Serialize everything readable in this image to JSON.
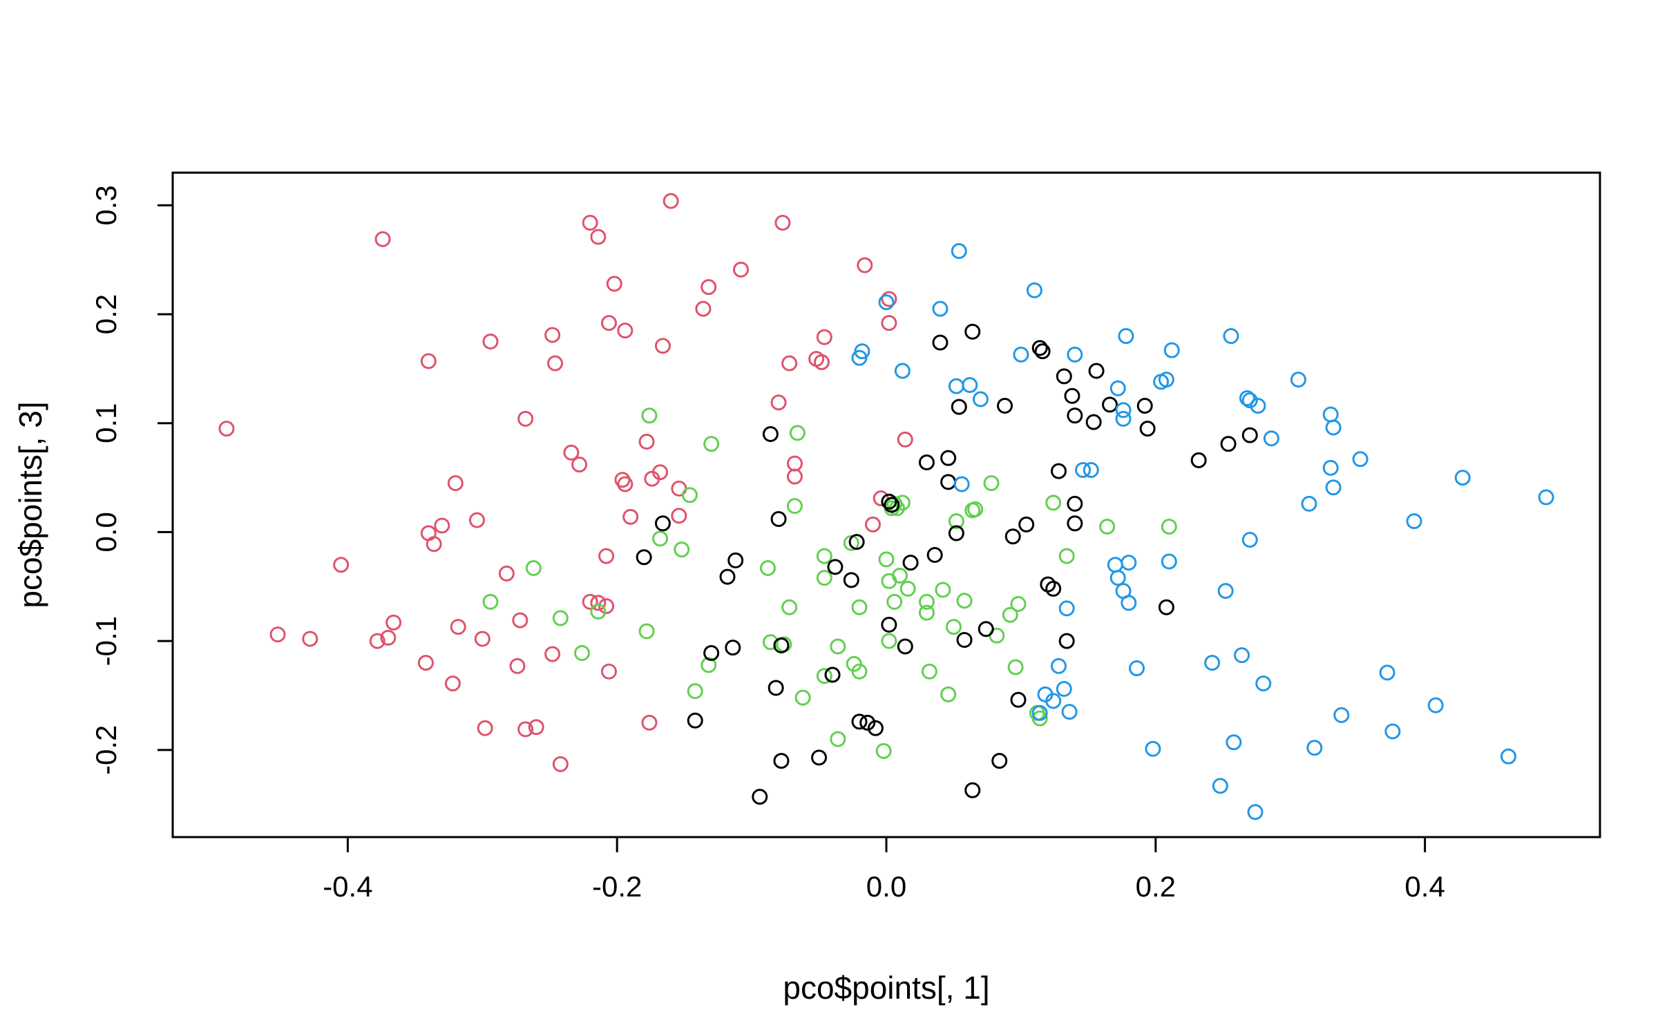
{
  "chart_data": {
    "type": "scatter",
    "title": "",
    "xlabel": "pco$points[, 1]",
    "ylabel": "pco$points[, 3]",
    "xlim": [
      -0.53,
      0.53
    ],
    "ylim": [
      -0.28,
      0.33
    ],
    "x_ticks": [
      -0.4,
      -0.2,
      0.0,
      0.2,
      0.4
    ],
    "x_tick_labels": [
      "-0.4",
      "-0.2",
      "0.0",
      "0.2",
      "0.4"
    ],
    "y_ticks": [
      -0.2,
      -0.1,
      0.0,
      0.1,
      0.2,
      0.3
    ],
    "y_tick_labels": [
      "-0.2",
      "-0.1",
      "0.0",
      "0.1",
      "0.2",
      "0.3"
    ],
    "grid": false,
    "marker": "open-circle",
    "series": [
      {
        "color": "#df536b",
        "points": [
          [
            -0.49,
            0.095
          ],
          [
            -0.452,
            -0.094
          ],
          [
            -0.428,
            -0.098
          ],
          [
            -0.405,
            -0.03
          ],
          [
            -0.378,
            -0.1
          ],
          [
            -0.374,
            0.269
          ],
          [
            -0.37,
            -0.097
          ],
          [
            -0.366,
            -0.083
          ],
          [
            -0.342,
            -0.12
          ],
          [
            -0.34,
            0.157
          ],
          [
            -0.34,
            -0.001
          ],
          [
            -0.336,
            -0.011
          ],
          [
            -0.33,
            0.006
          ],
          [
            -0.322,
            -0.139
          ],
          [
            -0.32,
            0.045
          ],
          [
            -0.318,
            -0.087
          ],
          [
            -0.304,
            0.011
          ],
          [
            -0.3,
            -0.098
          ],
          [
            -0.298,
            -0.18
          ],
          [
            -0.294,
            0.175
          ],
          [
            -0.282,
            -0.038
          ],
          [
            -0.274,
            -0.123
          ],
          [
            -0.272,
            -0.081
          ],
          [
            -0.268,
            0.104
          ],
          [
            -0.268,
            -0.181
          ],
          [
            -0.26,
            -0.179
          ],
          [
            -0.248,
            0.181
          ],
          [
            -0.248,
            -0.112
          ],
          [
            -0.246,
            0.155
          ],
          [
            -0.242,
            -0.213
          ],
          [
            -0.234,
            0.073
          ],
          [
            -0.228,
            0.062
          ],
          [
            -0.22,
            -0.064
          ],
          [
            -0.22,
            0.284
          ],
          [
            -0.214,
            0.271
          ],
          [
            -0.214,
            -0.065
          ],
          [
            -0.208,
            -0.068
          ],
          [
            -0.208,
            -0.022
          ],
          [
            -0.206,
            0.192
          ],
          [
            -0.206,
            -0.128
          ],
          [
            -0.202,
            0.228
          ],
          [
            -0.196,
            0.048
          ],
          [
            -0.194,
            0.044
          ],
          [
            -0.194,
            0.185
          ],
          [
            -0.19,
            0.014
          ],
          [
            -0.178,
            0.083
          ],
          [
            -0.176,
            -0.175
          ],
          [
            -0.174,
            0.049
          ],
          [
            -0.168,
            0.055
          ],
          [
            -0.166,
            0.171
          ],
          [
            -0.16,
            0.304
          ],
          [
            -0.154,
            0.015
          ],
          [
            -0.154,
            0.04
          ],
          [
            -0.136,
            0.205
          ],
          [
            -0.132,
            0.225
          ],
          [
            -0.108,
            0.241
          ],
          [
            -0.077,
            0.284
          ],
          [
            -0.08,
            0.119
          ],
          [
            -0.072,
            0.155
          ],
          [
            -0.068,
            0.051
          ],
          [
            -0.068,
            0.063
          ],
          [
            -0.052,
            0.159
          ],
          [
            -0.048,
            0.156
          ],
          [
            -0.046,
            0.179
          ],
          [
            -0.016,
            0.245
          ],
          [
            -0.01,
            0.007
          ],
          [
            -0.004,
            0.031
          ],
          [
            0.002,
            0.214
          ],
          [
            0.002,
            0.192
          ],
          [
            0.014,
            0.085
          ]
        ]
      },
      {
        "color": "#61d04f",
        "points": [
          [
            -0.294,
            -0.064
          ],
          [
            -0.262,
            -0.033
          ],
          [
            -0.242,
            -0.079
          ],
          [
            -0.226,
            -0.111
          ],
          [
            -0.214,
            -0.073
          ],
          [
            -0.178,
            -0.091
          ],
          [
            -0.176,
            0.107
          ],
          [
            -0.168,
            -0.006
          ],
          [
            -0.152,
            -0.016
          ],
          [
            -0.146,
            0.034
          ],
          [
            -0.142,
            -0.146
          ],
          [
            -0.132,
            -0.122
          ],
          [
            -0.13,
            0.081
          ],
          [
            -0.088,
            -0.033
          ],
          [
            -0.086,
            -0.101
          ],
          [
            -0.076,
            -0.103
          ],
          [
            -0.072,
            -0.069
          ],
          [
            -0.068,
            0.024
          ],
          [
            -0.066,
            0.091
          ],
          [
            -0.062,
            -0.152
          ],
          [
            -0.046,
            -0.022
          ],
          [
            -0.046,
            -0.042
          ],
          [
            -0.046,
            -0.132
          ],
          [
            -0.04,
            -0.131
          ],
          [
            -0.036,
            -0.19
          ],
          [
            -0.036,
            -0.105
          ],
          [
            -0.026,
            -0.01
          ],
          [
            -0.024,
            -0.121
          ],
          [
            -0.02,
            -0.128
          ],
          [
            -0.02,
            -0.069
          ],
          [
            -0.002,
            -0.201
          ],
          [
            0.0,
            -0.025
          ],
          [
            0.002,
            -0.045
          ],
          [
            0.002,
            -0.1
          ],
          [
            0.004,
            0.022
          ],
          [
            0.006,
            0.026
          ],
          [
            0.006,
            -0.064
          ],
          [
            0.008,
            0.022
          ],
          [
            0.01,
            -0.04
          ],
          [
            0.012,
            0.027
          ],
          [
            0.016,
            -0.052
          ],
          [
            0.03,
            -0.064
          ],
          [
            0.03,
            -0.074
          ],
          [
            0.032,
            -0.128
          ],
          [
            0.042,
            -0.053
          ],
          [
            0.046,
            -0.149
          ],
          [
            0.05,
            -0.087
          ],
          [
            0.052,
            0.01
          ],
          [
            0.058,
            -0.063
          ],
          [
            0.064,
            0.02
          ],
          [
            0.066,
            0.021
          ],
          [
            0.078,
            0.045
          ],
          [
            0.082,
            -0.095
          ],
          [
            0.092,
            -0.076
          ],
          [
            0.096,
            -0.124
          ],
          [
            0.098,
            -0.066
          ],
          [
            0.112,
            -0.166
          ],
          [
            0.114,
            -0.171
          ],
          [
            0.124,
            0.027
          ],
          [
            0.134,
            -0.022
          ],
          [
            0.164,
            0.005
          ],
          [
            0.21,
            0.005
          ]
        ]
      },
      {
        "color": "#000000",
        "points": [
          [
            -0.18,
            -0.023
          ],
          [
            -0.166,
            0.008
          ],
          [
            -0.142,
            -0.173
          ],
          [
            -0.13,
            -0.111
          ],
          [
            -0.118,
            -0.041
          ],
          [
            -0.114,
            -0.106
          ],
          [
            -0.112,
            -0.026
          ],
          [
            -0.086,
            0.09
          ],
          [
            -0.082,
            -0.143
          ],
          [
            -0.08,
            0.012
          ],
          [
            -0.078,
            -0.104
          ],
          [
            -0.078,
            -0.21
          ],
          [
            -0.094,
            -0.243
          ],
          [
            -0.05,
            -0.207
          ],
          [
            -0.04,
            -0.131
          ],
          [
            -0.038,
            -0.032
          ],
          [
            -0.026,
            -0.044
          ],
          [
            -0.022,
            -0.009
          ],
          [
            -0.02,
            -0.174
          ],
          [
            -0.014,
            -0.175
          ],
          [
            -0.008,
            -0.18
          ],
          [
            0.002,
            -0.085
          ],
          [
            0.002,
            0.028
          ],
          [
            0.004,
            0.025
          ],
          [
            0.014,
            -0.105
          ],
          [
            0.018,
            -0.028
          ],
          [
            0.03,
            0.064
          ],
          [
            0.036,
            -0.021
          ],
          [
            0.04,
            0.174
          ],
          [
            0.046,
            0.046
          ],
          [
            0.046,
            0.068
          ],
          [
            0.052,
            -0.001
          ],
          [
            0.054,
            0.115
          ],
          [
            0.058,
            -0.099
          ],
          [
            0.064,
            0.184
          ],
          [
            0.064,
            -0.237
          ],
          [
            0.074,
            -0.089
          ],
          [
            0.084,
            -0.21
          ],
          [
            0.088,
            0.116
          ],
          [
            0.094,
            -0.004
          ],
          [
            0.098,
            -0.154
          ],
          [
            0.104,
            0.007
          ],
          [
            0.114,
            0.169
          ],
          [
            0.116,
            0.166
          ],
          [
            0.12,
            -0.048
          ],
          [
            0.124,
            -0.052
          ],
          [
            0.128,
            0.056
          ],
          [
            0.132,
            0.143
          ],
          [
            0.134,
            -0.1
          ],
          [
            0.138,
            0.125
          ],
          [
            0.14,
            0.107
          ],
          [
            0.14,
            0.026
          ],
          [
            0.14,
            0.008
          ],
          [
            0.154,
            0.101
          ],
          [
            0.156,
            0.148
          ],
          [
            0.166,
            0.117
          ],
          [
            0.192,
            0.116
          ],
          [
            0.194,
            0.095
          ],
          [
            0.208,
            -0.069
          ],
          [
            0.232,
            0.066
          ],
          [
            0.254,
            0.081
          ],
          [
            0.27,
            0.089
          ]
        ]
      },
      {
        "color": "#2297e6",
        "points": [
          [
            -0.02,
            0.16
          ],
          [
            -0.018,
            0.166
          ],
          [
            0.0,
            0.211
          ],
          [
            0.012,
            0.148
          ],
          [
            0.04,
            0.205
          ],
          [
            0.052,
            0.134
          ],
          [
            0.054,
            0.258
          ],
          [
            0.056,
            0.044
          ],
          [
            0.062,
            0.135
          ],
          [
            0.07,
            0.122
          ],
          [
            0.1,
            0.163
          ],
          [
            0.11,
            0.222
          ],
          [
            0.114,
            -0.166
          ],
          [
            0.118,
            -0.149
          ],
          [
            0.124,
            -0.155
          ],
          [
            0.128,
            -0.123
          ],
          [
            0.132,
            -0.144
          ],
          [
            0.134,
            -0.07
          ],
          [
            0.136,
            -0.165
          ],
          [
            0.14,
            0.163
          ],
          [
            0.146,
            0.057
          ],
          [
            0.152,
            0.057
          ],
          [
            0.17,
            -0.03
          ],
          [
            0.172,
            0.132
          ],
          [
            0.172,
            -0.042
          ],
          [
            0.176,
            0.104
          ],
          [
            0.176,
            0.112
          ],
          [
            0.176,
            -0.054
          ],
          [
            0.178,
            0.18
          ],
          [
            0.18,
            -0.028
          ],
          [
            0.18,
            -0.065
          ],
          [
            0.186,
            -0.125
          ],
          [
            0.198,
            -0.199
          ],
          [
            0.204,
            0.138
          ],
          [
            0.208,
            0.14
          ],
          [
            0.21,
            -0.027
          ],
          [
            0.212,
            0.167
          ],
          [
            0.242,
            -0.12
          ],
          [
            0.248,
            -0.233
          ],
          [
            0.252,
            -0.054
          ],
          [
            0.256,
            0.18
          ],
          [
            0.258,
            -0.193
          ],
          [
            0.264,
            -0.113
          ],
          [
            0.268,
            0.123
          ],
          [
            0.27,
            0.121
          ],
          [
            0.27,
            -0.007
          ],
          [
            0.274,
            -0.257
          ],
          [
            0.276,
            0.116
          ],
          [
            0.28,
            -0.139
          ],
          [
            0.286,
            0.086
          ],
          [
            0.306,
            0.14
          ],
          [
            0.314,
            0.026
          ],
          [
            0.318,
            -0.198
          ],
          [
            0.33,
            0.059
          ],
          [
            0.33,
            0.108
          ],
          [
            0.332,
            0.096
          ],
          [
            0.332,
            0.041
          ],
          [
            0.338,
            -0.168
          ],
          [
            0.352,
            0.067
          ],
          [
            0.372,
            -0.129
          ],
          [
            0.376,
            -0.183
          ],
          [
            0.392,
            0.01
          ],
          [
            0.408,
            -0.159
          ],
          [
            0.428,
            0.05
          ],
          [
            0.462,
            -0.206
          ],
          [
            0.49,
            0.032
          ]
        ]
      }
    ]
  }
}
